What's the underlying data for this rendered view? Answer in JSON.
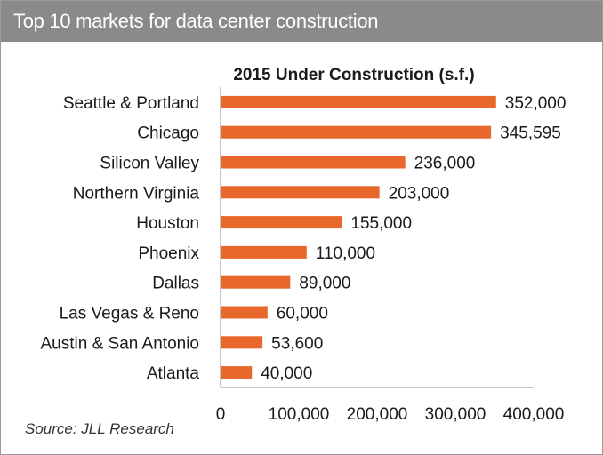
{
  "header": {
    "title": "Top 10 markets for data center construction"
  },
  "source": "Source: JLL Research",
  "colors": {
    "bar": "#e8672a",
    "header_bg": "#8a8a8a",
    "axis": "#8c8c8c"
  },
  "chart_data": {
    "type": "bar",
    "orientation": "horizontal",
    "title": "2015 Under Construction (s.f.)",
    "categories": [
      "Seattle & Portland",
      "Chicago",
      "Silicon Valley",
      "Northern Virginia",
      "Houston",
      "Phoenix",
      "Dallas",
      "Las Vegas & Reno",
      "Austin & San Antonio",
      "Atlanta"
    ],
    "values": [
      352000,
      345595,
      236000,
      203000,
      155000,
      110000,
      89000,
      60000,
      53600,
      40000
    ],
    "value_labels": [
      "352,000",
      "345,595",
      "236,000",
      "203,000",
      "155,000",
      "110,000",
      "89,000",
      "60,000",
      "53,600",
      "40,000"
    ],
    "xlim": [
      0,
      400000
    ],
    "xticks": [
      0,
      100000,
      200000,
      300000,
      400000
    ],
    "xtick_labels": [
      "0",
      "100,000",
      "200,000",
      "300,000",
      "400,000"
    ],
    "xlabel": "",
    "ylabel": "",
    "grid": false,
    "legend": "none"
  }
}
